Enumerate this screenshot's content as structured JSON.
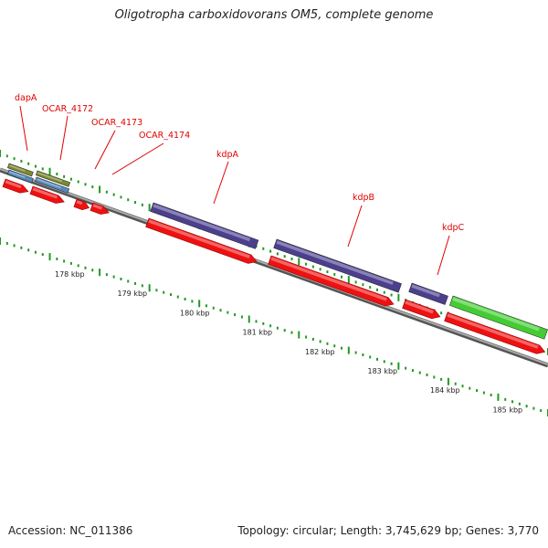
{
  "header": {
    "title": "Oligotropha carboxidovorans OM5, complete genome"
  },
  "footer": {
    "accession": "Accession: NC_011386",
    "summary": "Topology: circular; Length: 3,745,629 bp; Genes: 3,770"
  },
  "colors": {
    "gene_arrow": "#ee1111",
    "kdp_feature": "#4b3f8e",
    "green_feature": "#44cc33",
    "olive_feature": "#7a8a2e",
    "blue_feature": "#5588bb",
    "backbone": "#888888",
    "tick": "#229922",
    "label": "#e00000"
  },
  "gene_labels": [
    "dapA",
    "OCAR_4172",
    "OCAR_4173",
    "OCAR_4174",
    "kdpA",
    "kdpB",
    "kdpC"
  ],
  "scale_labels": [
    "178 kbp",
    "179 kbp",
    "180 kbp",
    "181 kbp",
    "182 kbp",
    "183 kbp",
    "184 kbp",
    "185 kbp"
  ]
}
